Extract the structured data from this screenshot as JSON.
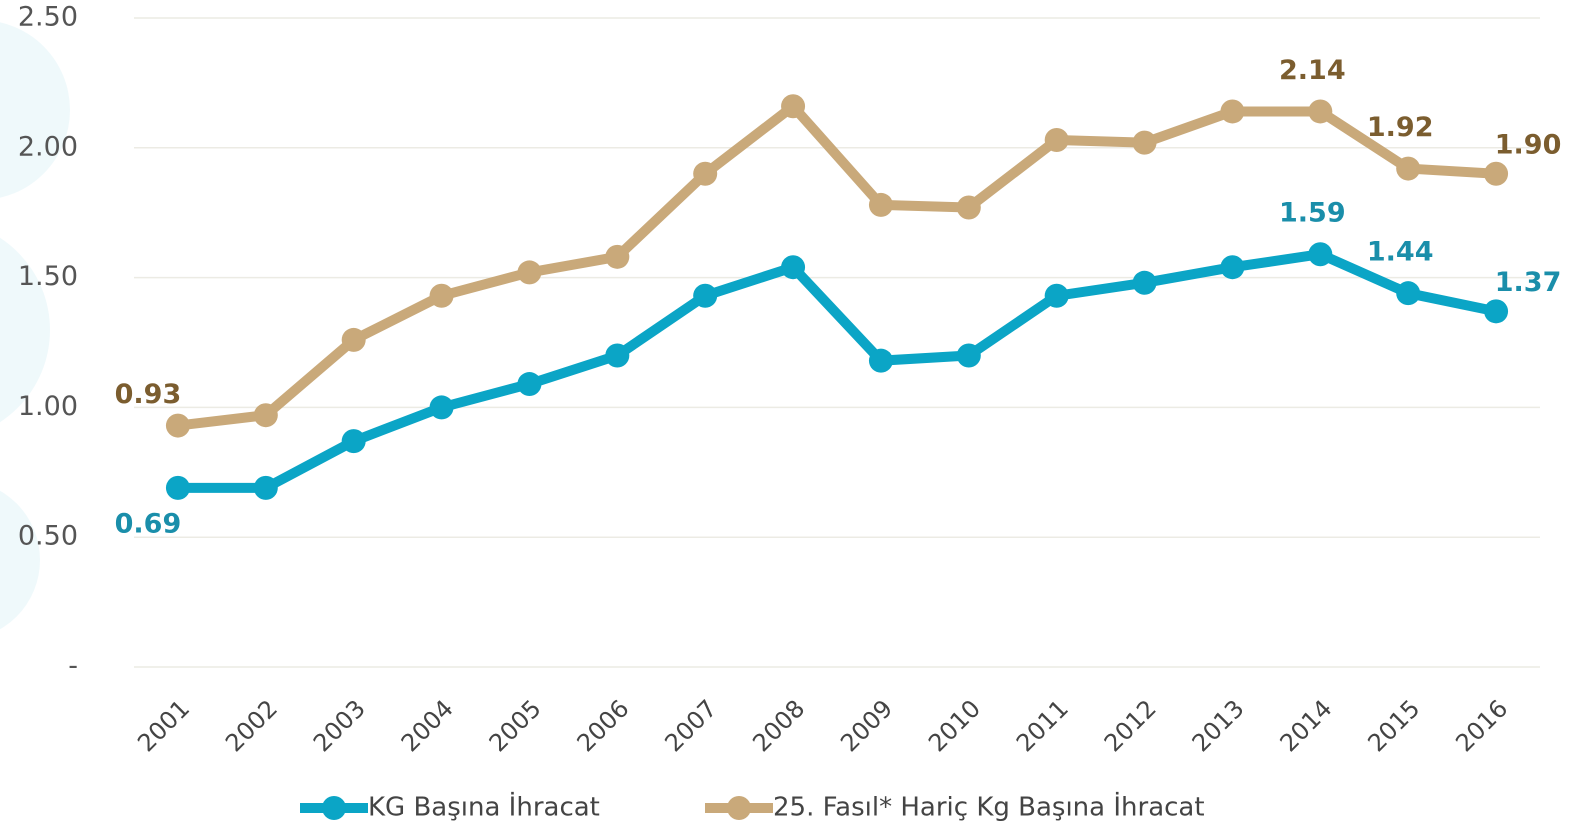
{
  "chart_data": {
    "type": "line",
    "categories": [
      "2001",
      "2002",
      "2003",
      "2004",
      "2005",
      "2006",
      "2007",
      "2008",
      "2009",
      "2010",
      "2011",
      "2012",
      "2013",
      "2014",
      "2015",
      "2016"
    ],
    "series": [
      {
        "name": "KG Başına İhracat",
        "color": "#0ba5c6",
        "values": [
          0.69,
          0.69,
          0.87,
          1.0,
          1.09,
          1.2,
          1.43,
          1.54,
          1.18,
          1.2,
          1.43,
          1.48,
          1.54,
          1.59,
          1.44,
          1.37
        ],
        "value_labels": [
          "0.69",
          null,
          null,
          null,
          null,
          null,
          null,
          null,
          null,
          null,
          null,
          null,
          null,
          "1.59",
          "1.44",
          "1.37"
        ]
      },
      {
        "name": "25. Fasıl* Hariç Kg Başına İhracat",
        "color": "#c9a97a",
        "values": [
          0.93,
          0.97,
          1.26,
          1.43,
          1.52,
          1.58,
          1.9,
          2.16,
          1.78,
          1.77,
          2.03,
          2.02,
          2.14,
          2.14,
          1.92,
          1.9
        ],
        "value_labels": [
          "0.93",
          null,
          null,
          null,
          null,
          null,
          null,
          null,
          null,
          null,
          null,
          null,
          null,
          "2.14",
          "1.92",
          "1.90"
        ]
      }
    ],
    "ylim": [
      0,
      2.5
    ],
    "yticks": [
      {
        "value": 0,
        "label": "-"
      },
      {
        "value": 0.5,
        "label": "0.50"
      },
      {
        "value": 1,
        "label": "1.00"
      },
      {
        "value": 1.5,
        "label": "1.50"
      },
      {
        "value": 2,
        "label": "2.00"
      },
      {
        "value": 2.5,
        "label": "2.50"
      }
    ],
    "grid": true,
    "legend": "bottom"
  }
}
